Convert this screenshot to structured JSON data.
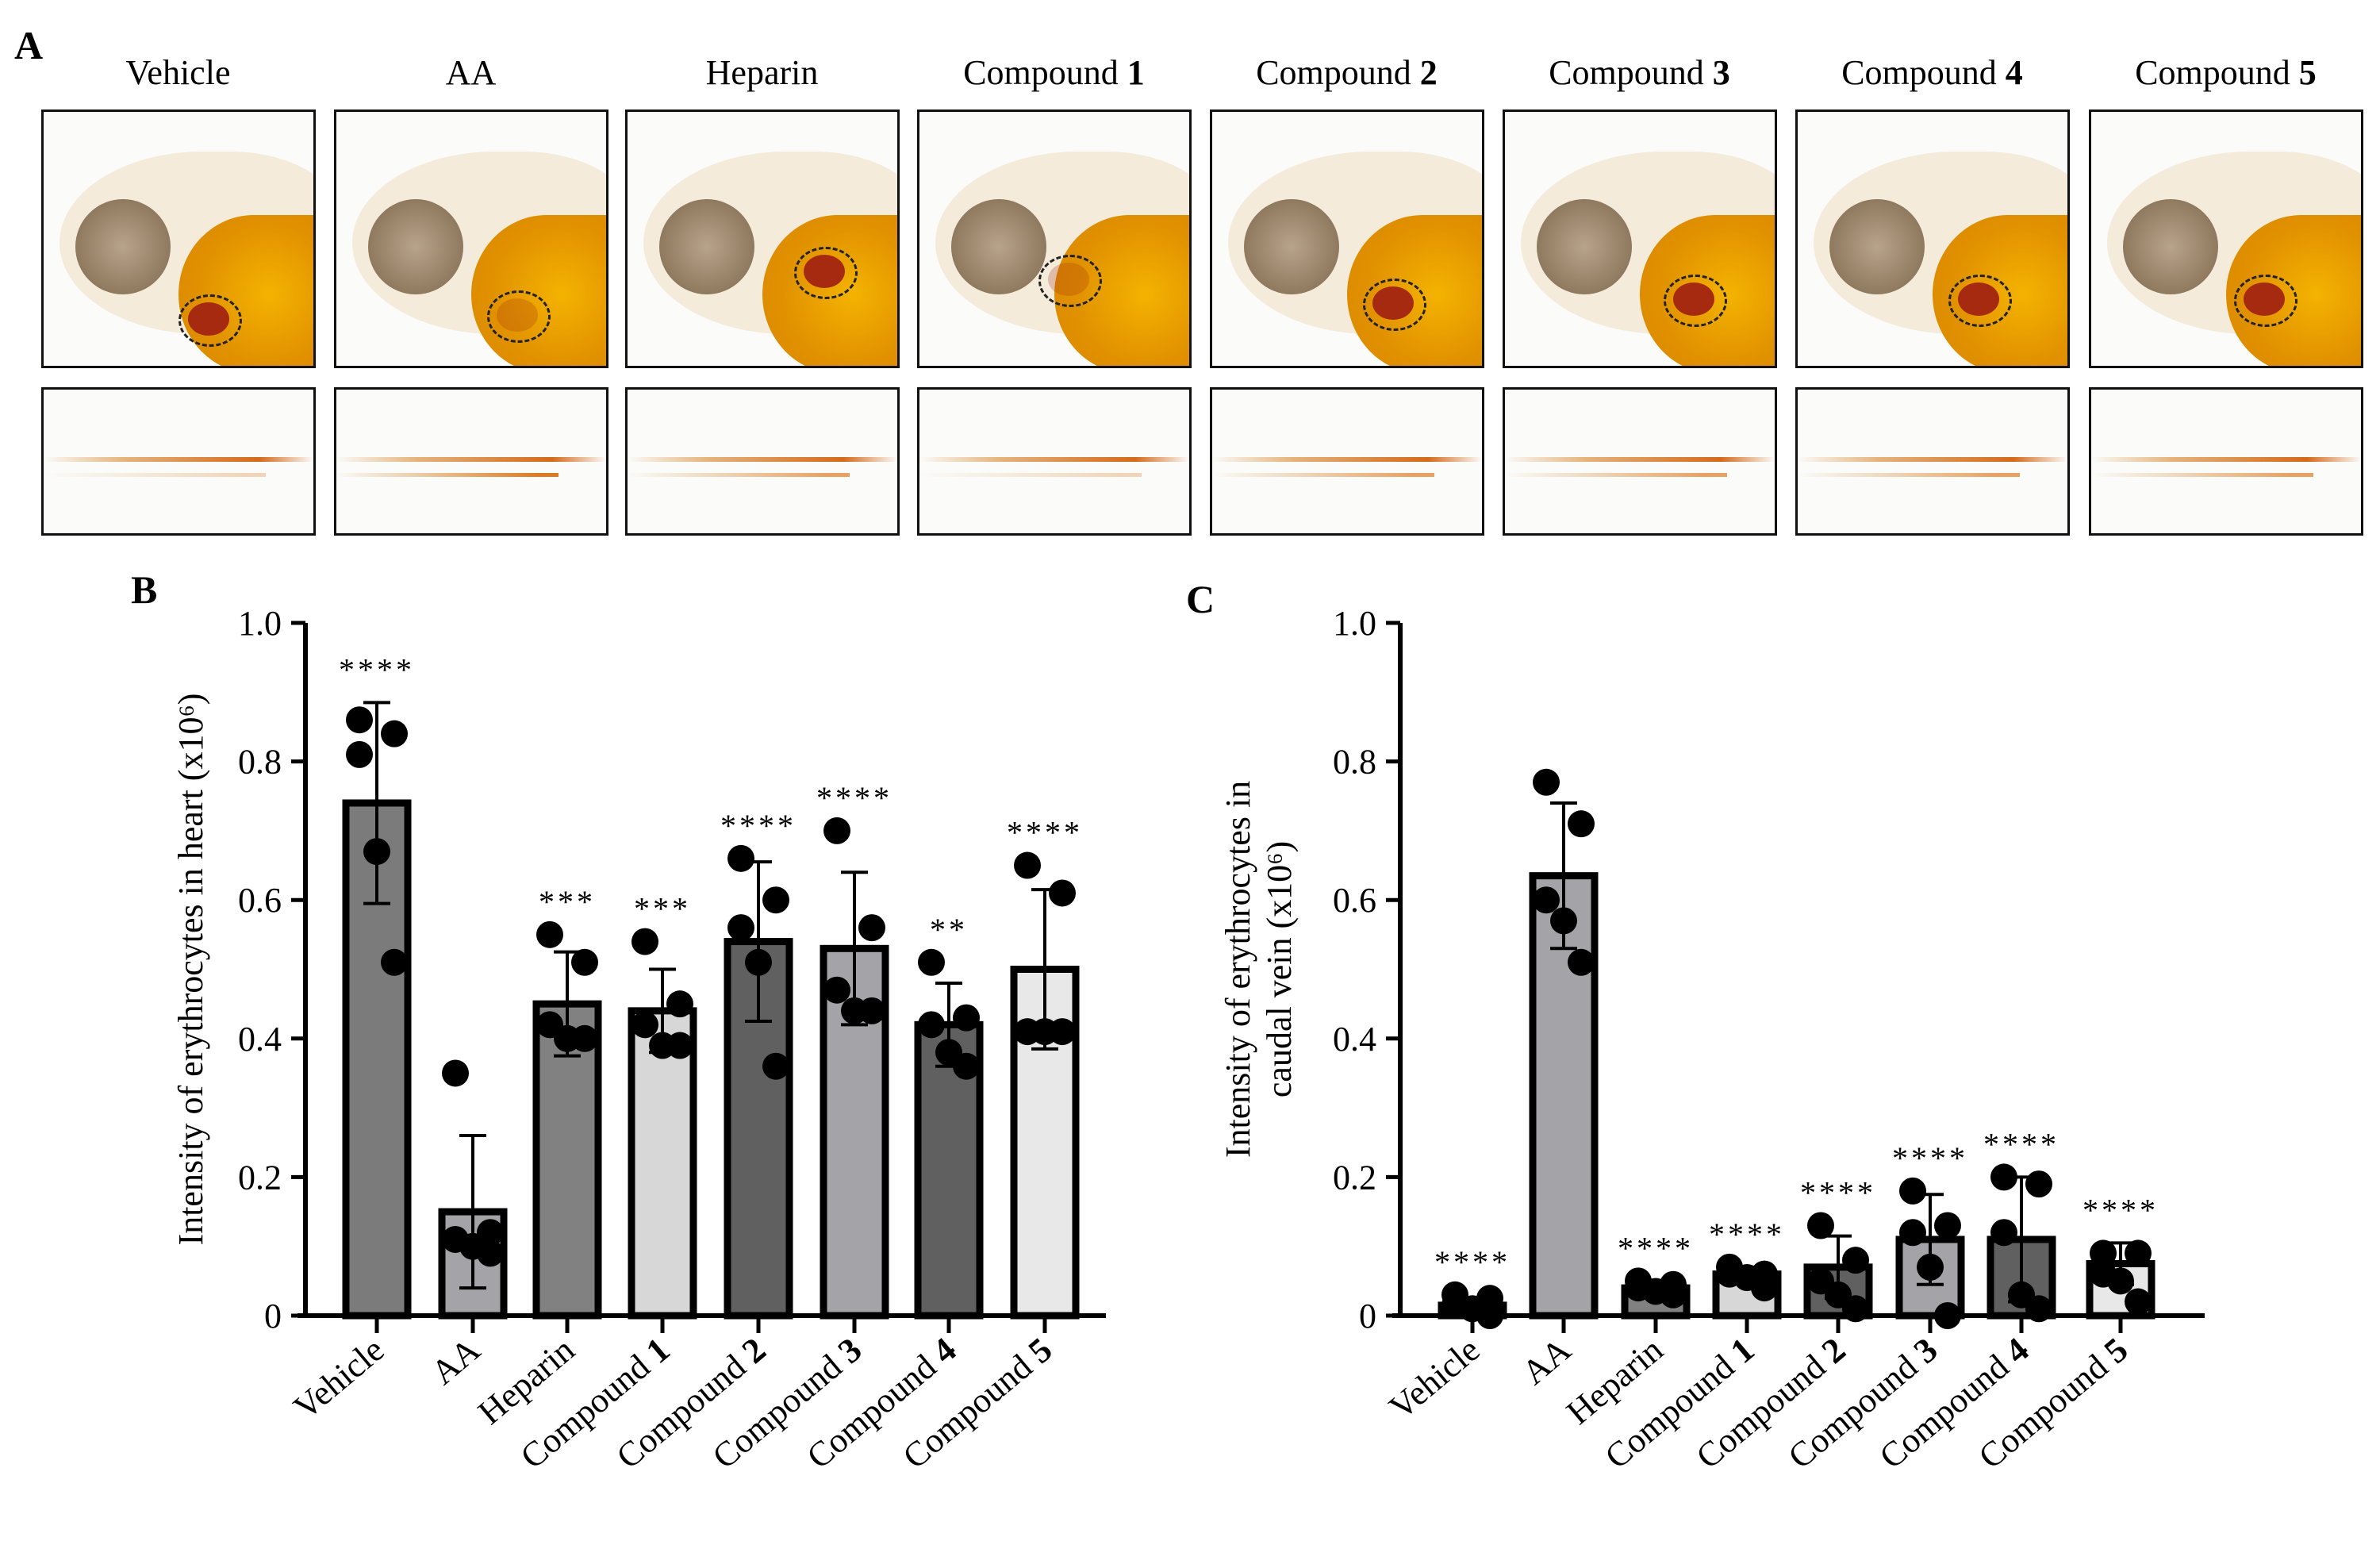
{
  "panel_labels": {
    "a": "A",
    "b": "B",
    "c": "C"
  },
  "fish_titles": [
    {
      "name": "Vehicle",
      "num": ""
    },
    {
      "name": "AA",
      "num": ""
    },
    {
      "name": "Heparin",
      "num": ""
    },
    {
      "name": "Compound ",
      "num": "1"
    },
    {
      "name": "Compound ",
      "num": "2"
    },
    {
      "name": "Compound ",
      "num": "3"
    },
    {
      "name": "Compound ",
      "num": "4"
    },
    {
      "name": "Compound ",
      "num": "5"
    }
  ],
  "colors": {
    "vehicle": "#7b7b7b",
    "aa": "#a4a4a8",
    "heparin": "#818181",
    "c1": "#d7d7d7",
    "c2": "#606060",
    "c3": "#a4a4a8",
    "c4": "#606060",
    "c5": "#e8e8e8",
    "heart": "#a52a10",
    "yolk": "#f0aa00"
  },
  "chart_data": [
    {
      "type": "bar",
      "panel": "B",
      "ylabel": "Intensity of erythrocytes in heart (x10⁶)",
      "ylim": [
        0,
        1.0
      ],
      "yticks": [
        "0",
        "0.2",
        "0.4",
        "0.6",
        "0.8",
        "1.0"
      ],
      "ytick_values": [
        0,
        0.2,
        0.4,
        0.6,
        0.8,
        1.0
      ],
      "categories": [
        {
          "name": "Vehicle",
          "num": ""
        },
        {
          "name": "AA",
          "num": ""
        },
        {
          "name": "Heparin",
          "num": ""
        },
        {
          "name": "Compound ",
          "num": "1"
        },
        {
          "name": "Compound ",
          "num": "2"
        },
        {
          "name": "Compound ",
          "num": "3"
        },
        {
          "name": "Compound ",
          "num": "4"
        },
        {
          "name": "Compound ",
          "num": "5"
        }
      ],
      "means": [
        0.74,
        0.15,
        0.45,
        0.44,
        0.54,
        0.53,
        0.42,
        0.5
      ],
      "sd": [
        0.145,
        0.11,
        0.075,
        0.06,
        0.115,
        0.11,
        0.06,
        0.115
      ],
      "points": [
        [
          0.86,
          0.84,
          0.81,
          0.67,
          0.51
        ],
        [
          0.35,
          0.12,
          0.11,
          0.1,
          0.09
        ],
        [
          0.55,
          0.51,
          0.42,
          0.4,
          0.4
        ],
        [
          0.54,
          0.45,
          0.42,
          0.39,
          0.39
        ],
        [
          0.66,
          0.6,
          0.56,
          0.51,
          0.36
        ],
        [
          0.7,
          0.56,
          0.47,
          0.44,
          0.44
        ],
        [
          0.51,
          0.43,
          0.42,
          0.38,
          0.36
        ],
        [
          0.65,
          0.61,
          0.41,
          0.41,
          0.41
        ]
      ],
      "significance": [
        "****",
        "",
        "***",
        "***",
        "****",
        "****",
        "**",
        "****"
      ],
      "bar_colors": [
        "#7b7b7b",
        "#a4a4a8",
        "#818181",
        "#d7d7d7",
        "#606060",
        "#a4a4a8",
        "#606060",
        "#e8e8e8"
      ]
    },
    {
      "type": "bar",
      "panel": "C",
      "ylabel": [
        "Intensity of erythrocytes in",
        "caudal vein (x10⁶)"
      ],
      "ylim": [
        0,
        1.0
      ],
      "yticks": [
        "0",
        "0.2",
        "0.4",
        "0.6",
        "0.8",
        "1.0"
      ],
      "ytick_values": [
        0,
        0.2,
        0.4,
        0.6,
        0.8,
        1.0
      ],
      "categories": [
        {
          "name": "Vehicle",
          "num": ""
        },
        {
          "name": "AA",
          "num": ""
        },
        {
          "name": "Heparin",
          "num": ""
        },
        {
          "name": "Compound ",
          "num": "1"
        },
        {
          "name": "Compound ",
          "num": "2"
        },
        {
          "name": "Compound ",
          "num": "3"
        },
        {
          "name": "Compound ",
          "num": "4"
        },
        {
          "name": "Compound ",
          "num": "5"
        }
      ],
      "means": [
        0.015,
        0.635,
        0.04,
        0.06,
        0.07,
        0.11,
        0.11,
        0.075
      ],
      "sd": [
        0.01,
        0.105,
        0.01,
        0.01,
        0.045,
        0.065,
        0.09,
        0.03
      ],
      "points": [
        [
          0.03,
          0.025,
          0.015,
          0.01,
          0.0
        ],
        [
          0.77,
          0.71,
          0.6,
          0.57,
          0.51
        ],
        [
          0.05,
          0.045,
          0.04,
          0.035,
          0.03
        ],
        [
          0.07,
          0.06,
          0.06,
          0.055,
          0.04
        ],
        [
          0.13,
          0.08,
          0.05,
          0.03,
          0.01
        ],
        [
          0.18,
          0.13,
          0.12,
          0.07,
          0.0
        ],
        [
          0.2,
          0.19,
          0.12,
          0.03,
          0.01
        ],
        [
          0.09,
          0.09,
          0.06,
          0.05,
          0.02
        ]
      ],
      "significance": [
        "****",
        "",
        "****",
        "****",
        "****",
        "****",
        "****",
        "****"
      ],
      "bar_colors": [
        "#7b7b7b",
        "#a4a4a8",
        "#818181",
        "#d7d7d7",
        "#606060",
        "#a4a4a8",
        "#606060",
        "#e8e8e8"
      ]
    }
  ]
}
